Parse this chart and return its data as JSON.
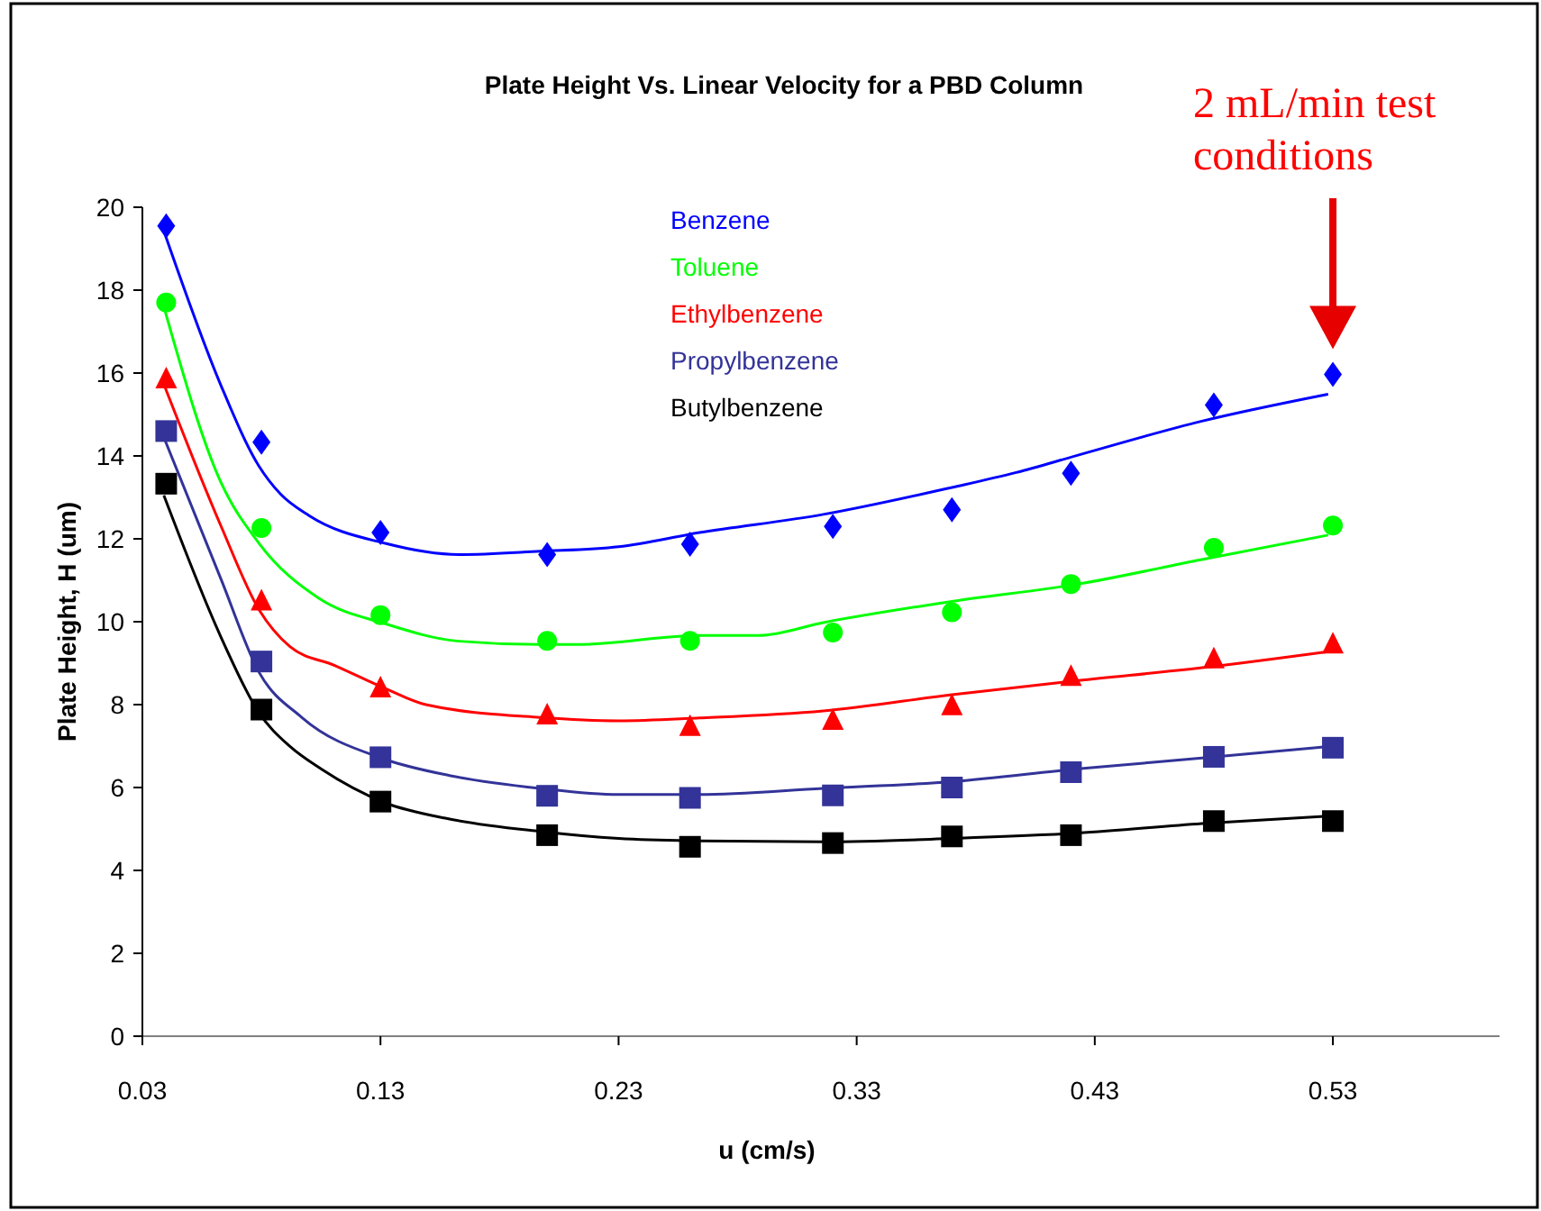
{
  "chart_data": {
    "type": "scatter",
    "title": "Plate Height Vs. Linear Velocity for a PBD Column",
    "xlabel": "u (cm/s)",
    "ylabel": "Plate Height, H (um)",
    "x": [
      0.04,
      0.08,
      0.13,
      0.2,
      0.26,
      0.32,
      0.37,
      0.42,
      0.48,
      0.53
    ],
    "series": [
      {
        "name": "Benzene",
        "color": "#0000ff",
        "marker": "diamond",
        "values": [
          19.55,
          14.33,
          12.15,
          11.62,
          11.87,
          12.3,
          12.7,
          13.58,
          15.23,
          15.97
        ]
      },
      {
        "name": "Toluene",
        "color": "#00ff00",
        "marker": "circle",
        "values": [
          17.7,
          12.26,
          10.16,
          9.54,
          9.54,
          9.74,
          10.23,
          10.91,
          11.78,
          12.32
        ]
      },
      {
        "name": "Ethylbenzene",
        "color": "#ff0000",
        "marker": "triangle",
        "values": [
          15.85,
          10.49,
          8.39,
          7.74,
          7.46,
          7.61,
          7.96,
          8.67,
          9.09,
          9.45
        ]
      },
      {
        "name": "Propylbenzene",
        "color": "#333399",
        "marker": "square",
        "values": [
          14.6,
          9.04,
          6.73,
          5.8,
          5.75,
          5.81,
          6.0,
          6.37,
          6.74,
          6.96
        ]
      },
      {
        "name": "Butylbenzene",
        "color": "#000000",
        "marker": "square",
        "values": [
          13.33,
          7.88,
          5.66,
          4.85,
          4.57,
          4.66,
          4.82,
          4.85,
          5.19,
          5.19
        ]
      },
      {
        "type": "line",
        "color": "#0000ff",
        "marker": "none",
        "x": [
          0.039,
          0.063,
          0.079,
          0.088,
          0.1,
          0.132,
          0.163,
          0.197,
          0.23,
          0.264,
          0.316,
          0.37,
          0.397,
          0.423,
          0.475,
          0.528
        ],
        "values": [
          19.43,
          15.7,
          13.75,
          13.08,
          12.56,
          11.89,
          11.62,
          11.7,
          11.81,
          12.15,
          12.59,
          13.24,
          13.6,
          14.02,
          14.84,
          15.49
        ]
      },
      {
        "type": "line",
        "color": "#00ff00",
        "marker": "none",
        "x": [
          0.039,
          0.063,
          0.079,
          0.104,
          0.132,
          0.163,
          0.197,
          0.213,
          0.264,
          0.289,
          0.316,
          0.37,
          0.423,
          0.475,
          0.528
        ],
        "values": [
          17.6,
          13.36,
          11.89,
          10.57,
          9.95,
          9.53,
          9.45,
          9.45,
          9.67,
          9.67,
          9.98,
          10.49,
          10.91,
          11.5,
          12.09
        ]
      },
      {
        "type": "line",
        "color": "#ff0000",
        "marker": "none",
        "x": [
          0.039,
          0.063,
          0.079,
          0.092,
          0.111,
          0.132,
          0.149,
          0.197,
          0.23,
          0.264,
          0.316,
          0.37,
          0.423,
          0.475,
          0.528
        ],
        "values": [
          15.73,
          12.31,
          10.29,
          9.4,
          8.94,
          8.39,
          8.0,
          7.69,
          7.61,
          7.68,
          7.85,
          8.24,
          8.58,
          8.89,
          9.28
        ]
      },
      {
        "type": "line",
        "color": "#333399",
        "marker": "none",
        "x": [
          0.039,
          0.063,
          0.079,
          0.097,
          0.132,
          0.159,
          0.197,
          0.23,
          0.264,
          0.316,
          0.37,
          0.423,
          0.475,
          0.528
        ],
        "values": [
          14.45,
          11.03,
          8.78,
          7.69,
          6.68,
          6.29,
          5.98,
          5.83,
          5.83,
          5.98,
          6.14,
          6.45,
          6.71,
          6.99
        ]
      },
      {
        "type": "line",
        "color": "#000000",
        "marker": "none",
        "x": [
          0.039,
          0.063,
          0.079,
          0.092,
          0.105,
          0.132,
          0.159,
          0.197,
          0.23,
          0.264,
          0.316,
          0.37,
          0.423,
          0.475,
          0.528
        ],
        "values": [
          13.05,
          9.63,
          7.8,
          6.99,
          6.45,
          5.63,
          5.24,
          4.94,
          4.77,
          4.71,
          4.69,
          4.77,
          4.9,
          5.13,
          5.31
        ]
      }
    ],
    "xlim": [
      0.03,
      0.6
    ],
    "xticks": [
      0.03,
      0.13,
      0.23,
      0.33,
      0.43,
      0.53
    ],
    "ylim": [
      0,
      20
    ],
    "yticks": [
      0,
      2,
      4,
      6,
      8,
      10,
      12,
      14,
      16,
      18,
      20
    ],
    "grid": false,
    "legend": "top",
    "line_style": "solid",
    "annotations": [
      "2 mL/min test conditions"
    ]
  }
}
